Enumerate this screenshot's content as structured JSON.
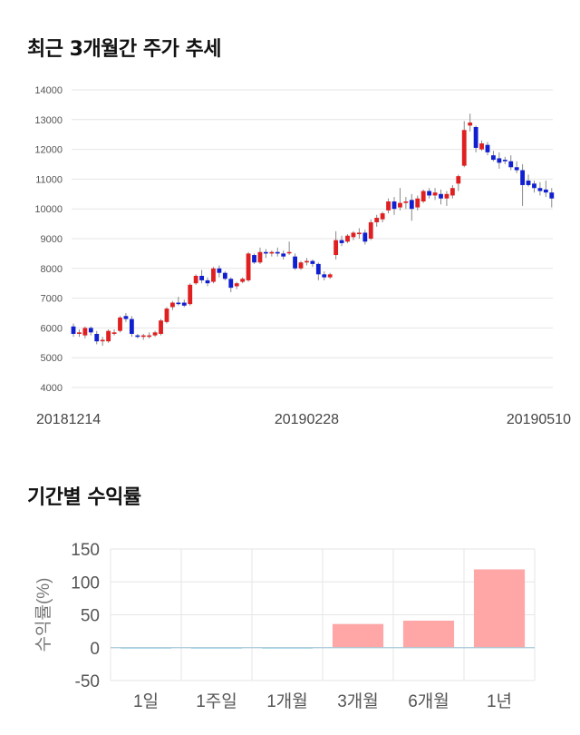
{
  "titles": {
    "price_trend": "최근 3개월간 주가 추세",
    "period_returns": "기간별 수익률"
  },
  "chart_data": [
    {
      "type": "candlestick",
      "title": "최근 3개월간 주가 추세",
      "ylim": [
        4000,
        14000
      ],
      "yticks": [
        4000,
        5000,
        6000,
        7000,
        8000,
        9000,
        10000,
        11000,
        12000,
        13000,
        14000
      ],
      "x_tick_labels": [
        {
          "label": "20181214",
          "index": 0
        },
        {
          "label": "20190228",
          "index": 40
        },
        {
          "label": "20190510",
          "index": 88
        }
      ],
      "grid": true,
      "colors": {
        "up": "#e02020",
        "down": "#1020d0",
        "wick": "#888888",
        "grid": "#e6e6e6"
      },
      "candles": [
        [
          6050,
          6150,
          5700,
          5800
        ],
        [
          5800,
          5950,
          5700,
          5850
        ],
        [
          5750,
          6050,
          5650,
          6000
        ],
        [
          6000,
          6050,
          5750,
          5850
        ],
        [
          5800,
          5900,
          5450,
          5550
        ],
        [
          5550,
          5700,
          5400,
          5600
        ],
        [
          5550,
          5950,
          5500,
          5900
        ],
        [
          5800,
          5950,
          5750,
          5850
        ],
        [
          5900,
          6400,
          5850,
          6350
        ],
        [
          6400,
          6500,
          6200,
          6300
        ],
        [
          6300,
          6400,
          5700,
          5800
        ],
        [
          5750,
          5800,
          5650,
          5700
        ],
        [
          5700,
          5800,
          5600,
          5750
        ],
        [
          5700,
          5850,
          5650,
          5750
        ],
        [
          5750,
          5900,
          5700,
          5850
        ],
        [
          5800,
          6300,
          5750,
          6250
        ],
        [
          6200,
          6700,
          6150,
          6650
        ],
        [
          6700,
          6900,
          6600,
          6850
        ],
        [
          6850,
          7050,
          6750,
          6800
        ],
        [
          6850,
          6950,
          6700,
          6750
        ],
        [
          6800,
          7500,
          6750,
          7450
        ],
        [
          7500,
          7800,
          7450,
          7750
        ],
        [
          7750,
          7950,
          7500,
          7600
        ],
        [
          7600,
          7700,
          7400,
          7500
        ],
        [
          7550,
          8050,
          7500,
          8000
        ],
        [
          8000,
          8100,
          7700,
          7850
        ],
        [
          7850,
          7900,
          7600,
          7650
        ],
        [
          7650,
          7700,
          7200,
          7350
        ],
        [
          7400,
          7550,
          7300,
          7500
        ],
        [
          7550,
          7700,
          7500,
          7650
        ],
        [
          7600,
          8550,
          7550,
          8500
        ],
        [
          8450,
          8500,
          8150,
          8200
        ],
        [
          8200,
          8700,
          8150,
          8550
        ],
        [
          8550,
          8650,
          8350,
          8500
        ],
        [
          8500,
          8600,
          8400,
          8550
        ],
        [
          8550,
          8700,
          8400,
          8500
        ],
        [
          8500,
          8600,
          8300,
          8400
        ],
        [
          8550,
          8900,
          8450,
          8550
        ],
        [
          8400,
          8500,
          7950,
          8000
        ],
        [
          8000,
          8250,
          7950,
          8200
        ],
        [
          8200,
          8350,
          8100,
          8250
        ],
        [
          8250,
          8300,
          8050,
          8150
        ],
        [
          8150,
          8200,
          7600,
          7800
        ],
        [
          7800,
          7900,
          7600,
          7700
        ],
        [
          7700,
          7850,
          7650,
          7800
        ],
        [
          8450,
          9250,
          8300,
          8950
        ],
        [
          8950,
          9100,
          8750,
          8850
        ],
        [
          8900,
          9150,
          8850,
          9100
        ],
        [
          9050,
          9250,
          8950,
          9200
        ],
        [
          9150,
          9350,
          9000,
          9200
        ],
        [
          9200,
          9300,
          8800,
          8900
        ],
        [
          9000,
          9650,
          8950,
          9550
        ],
        [
          9550,
          9800,
          9400,
          9700
        ],
        [
          9650,
          9900,
          9550,
          9850
        ],
        [
          9950,
          10350,
          9850,
          10250
        ],
        [
          10250,
          10400,
          9800,
          10000
        ],
        [
          10050,
          10700,
          9950,
          10200
        ],
        [
          10200,
          10400,
          10000,
          10250
        ],
        [
          10300,
          10500,
          9600,
          10000
        ],
        [
          10050,
          10450,
          9950,
          10350
        ],
        [
          10250,
          10650,
          10200,
          10600
        ],
        [
          10600,
          10700,
          10350,
          10450
        ],
        [
          10450,
          10700,
          10300,
          10550
        ],
        [
          10500,
          10650,
          10150,
          10350
        ],
        [
          10350,
          10600,
          10100,
          10500
        ],
        [
          10450,
          10800,
          10350,
          10700
        ],
        [
          10850,
          11150,
          10600,
          11100
        ],
        [
          11450,
          12950,
          11400,
          12650
        ],
        [
          12800,
          13200,
          12600,
          12900
        ],
        [
          12750,
          12800,
          11900,
          12050
        ],
        [
          12000,
          12300,
          11950,
          12200
        ],
        [
          12150,
          12250,
          11800,
          11900
        ],
        [
          11800,
          11950,
          11600,
          11650
        ],
        [
          11700,
          11900,
          11350,
          11550
        ],
        [
          11650,
          11750,
          11500,
          11600
        ],
        [
          11600,
          11800,
          11300,
          11400
        ],
        [
          11400,
          11600,
          11200,
          11300
        ],
        [
          11300,
          11500,
          10100,
          10800
        ],
        [
          10950,
          11150,
          10750,
          10800
        ],
        [
          10850,
          10950,
          10550,
          10700
        ],
        [
          10700,
          10900,
          10450,
          10600
        ],
        [
          10650,
          10950,
          10400,
          10550
        ],
        [
          10550,
          10700,
          10050,
          10350
        ]
      ]
    },
    {
      "type": "bar",
      "title": "기간별 수익률",
      "ylabel": "수익률(%)",
      "categories": [
        "1일",
        "1주일",
        "1개월",
        "3개월",
        "6개월",
        "1년"
      ],
      "values": [
        0,
        -1,
        -0.3,
        36,
        41,
        119
      ],
      "ylim": [
        -50,
        150
      ],
      "yticks": [
        -50,
        0,
        50,
        100,
        150
      ],
      "grid": true,
      "colors": {
        "positive": "#ffa6a6",
        "negative": "#a6e0f0",
        "zero_line": "#a8c8d8",
        "grid": "#e6e6e6"
      }
    }
  ]
}
